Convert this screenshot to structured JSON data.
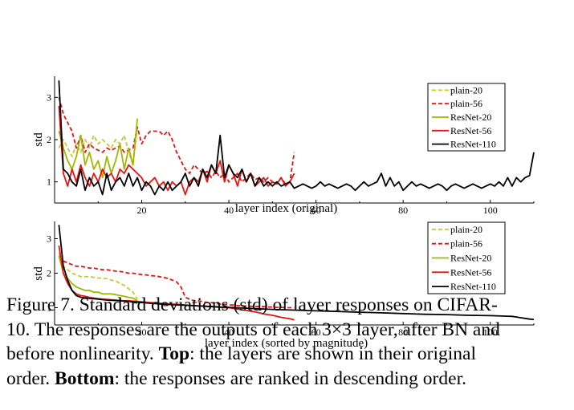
{
  "chart_data": [
    {
      "type": "line",
      "panel": "Top",
      "xlabel": "layer index (original)",
      "ylabel": "std",
      "xlim": [
        0,
        110
      ],
      "ylim": [
        0.5,
        3.5
      ],
      "xticks": [
        20,
        40,
        60,
        80,
        100
      ],
      "yticks": [
        1,
        2,
        3
      ],
      "legend_position": "top-right",
      "series": [
        {
          "name": "plain-20",
          "color": "#c8c832",
          "dash": "dashed",
          "x": [
            1,
            2,
            3,
            4,
            5,
            6,
            7,
            8,
            9,
            10,
            11,
            12,
            13,
            14,
            15,
            16,
            17,
            18,
            19
          ],
          "y": [
            1.8,
            2.0,
            1.8,
            1.6,
            1.9,
            1.7,
            2.0,
            1.8,
            2.1,
            1.9,
            2.0,
            1.9,
            1.8,
            2.0,
            1.9,
            2.1,
            1.7,
            1.4,
            2.3
          ]
        },
        {
          "name": "plain-56",
          "color": "#ee1111",
          "dash": "dashed",
          "x": [
            1,
            2,
            3,
            4,
            5,
            6,
            7,
            8,
            9,
            10,
            11,
            12,
            13,
            14,
            15,
            16,
            17,
            18,
            19,
            20,
            21,
            22,
            23,
            24,
            25,
            26,
            27,
            28,
            29,
            30,
            31,
            32,
            33,
            34,
            35,
            36,
            37,
            38,
            39,
            40,
            41,
            42,
            43,
            44,
            45,
            46,
            47,
            48,
            49,
            50,
            51,
            52,
            53,
            54,
            55
          ],
          "y": [
            3.0,
            2.6,
            2.4,
            2.2,
            1.8,
            2.1,
            1.7,
            1.9,
            1.8,
            1.75,
            1.7,
            1.8,
            1.75,
            1.8,
            1.85,
            1.7,
            1.75,
            1.8,
            2.3,
            1.9,
            2.1,
            2.2,
            2.2,
            2.2,
            2.1,
            2.2,
            2.0,
            1.7,
            1.5,
            1.3,
            1.2,
            1.4,
            1.3,
            1.2,
            1.25,
            1.1,
            1.25,
            1.1,
            1.2,
            1.0,
            1.1,
            1.2,
            1.0,
            1.1,
            1.2,
            1.05,
            1.1,
            1.0,
            1.1,
            1.0,
            0.95,
            1.1,
            0.95,
            1.0,
            1.7
          ]
        },
        {
          "name": "ResNet-20",
          "color": "#9fb800",
          "dash": "solid",
          "x": [
            1,
            2,
            3,
            4,
            5,
            6,
            7,
            8,
            9,
            10,
            11,
            12,
            13,
            14,
            15,
            16,
            17,
            18,
            19
          ],
          "y": [
            2.2,
            1.8,
            1.5,
            1.3,
            1.6,
            2.1,
            1.4,
            1.7,
            1.3,
            1.5,
            1.1,
            1.6,
            1.2,
            1.5,
            1.9,
            1.3,
            1.8,
            1.4,
            2.5
          ]
        },
        {
          "name": "ResNet-56",
          "color": "#ee1111",
          "dash": "solid",
          "x": [
            1,
            2,
            3,
            4,
            5,
            6,
            7,
            8,
            9,
            10,
            11,
            12,
            13,
            14,
            15,
            16,
            17,
            18,
            19,
            20,
            21,
            22,
            23,
            24,
            25,
            26,
            27,
            28,
            29,
            30,
            31,
            32,
            33,
            34,
            35,
            36,
            37,
            38,
            39,
            40,
            41,
            42,
            43,
            44,
            45,
            46,
            47,
            48,
            49,
            50,
            51,
            52,
            53,
            54,
            55
          ],
          "y": [
            2.8,
            1.2,
            0.9,
            1.3,
            1.0,
            1.4,
            1.1,
            0.9,
            1.2,
            1.0,
            1.3,
            1.1,
            1.2,
            1.0,
            1.3,
            1.2,
            1.4,
            1.3,
            1.2,
            1.1,
            0.9,
            1.0,
            1.1,
            0.9,
            1.0,
            0.8,
            1.0,
            0.9,
            1.0,
            0.7,
            1.0,
            1.1,
            1.0,
            1.3,
            1.0,
            1.4,
            1.2,
            1.5,
            1.0,
            1.4,
            1.2,
            0.9,
            1.3,
            1.0,
            1.2,
            0.9,
            1.0,
            1.1,
            0.9,
            1.0,
            0.95,
            1.1,
            0.9,
            1.0,
            1.2
          ]
        },
        {
          "name": "ResNet-110",
          "color": "#000000",
          "dash": "solid",
          "x": [
            1,
            2,
            3,
            4,
            5,
            6,
            7,
            8,
            9,
            10,
            11,
            12,
            13,
            14,
            15,
            16,
            17,
            18,
            19,
            20,
            21,
            22,
            23,
            24,
            25,
            26,
            27,
            28,
            29,
            30,
            31,
            32,
            33,
            34,
            35,
            36,
            37,
            38,
            39,
            40,
            41,
            42,
            43,
            44,
            45,
            46,
            47,
            48,
            49,
            50,
            51,
            52,
            53,
            54,
            55,
            56,
            57,
            58,
            59,
            60,
            61,
            62,
            63,
            64,
            65,
            66,
            67,
            68,
            69,
            70,
            71,
            72,
            73,
            74,
            75,
            76,
            77,
            78,
            79,
            80,
            81,
            82,
            83,
            84,
            85,
            86,
            87,
            88,
            89,
            90,
            91,
            92,
            93,
            94,
            95,
            96,
            97,
            98,
            99,
            100,
            101,
            102,
            103,
            104,
            105,
            106,
            107,
            108,
            109,
            110
          ],
          "y": [
            3.4,
            1.3,
            1.2,
            1.0,
            0.9,
            1.3,
            0.8,
            1.1,
            0.9,
            1.0,
            0.7,
            1.2,
            0.8,
            1.0,
            1.1,
            0.9,
            1.2,
            0.9,
            1.1,
            0.8,
            1.0,
            0.9,
            0.7,
            0.9,
            0.8,
            1.0,
            0.8,
            0.9,
            1.0,
            1.2,
            0.9,
            1.1,
            0.9,
            1.3,
            1.1,
            1.4,
            1.2,
            2.1,
            1.1,
            1.4,
            1.2,
            1.1,
            1.3,
            1.0,
            1.2,
            0.9,
            1.1,
            0.9,
            1.0,
            0.9,
            1.0,
            0.9,
            0.95,
            1.0,
            0.85,
            0.9,
            0.95,
            0.9,
            0.85,
            0.9,
            1.0,
            0.9,
            0.95,
            0.9,
            0.85,
            0.9,
            0.95,
            0.9,
            0.8,
            0.9,
            1.0,
            0.9,
            0.95,
            1.0,
            1.2,
            0.9,
            1.1,
            0.9,
            1.0,
            0.8,
            0.9,
            1.0,
            0.9,
            0.95,
            0.9,
            0.85,
            0.9,
            0.95,
            0.9,
            0.8,
            0.9,
            0.95,
            0.9,
            0.85,
            0.9,
            0.95,
            0.9,
            0.85,
            0.9,
            0.95,
            0.9,
            1.0,
            0.9,
            1.1,
            0.9,
            1.1,
            1.0,
            1.1,
            1.15,
            1.7
          ]
        }
      ]
    },
    {
      "type": "line",
      "panel": "Bottom",
      "xlabel": "layer index (sorted by magnitude)",
      "ylabel": "std",
      "xlim": [
        0,
        110
      ],
      "ylim": [
        0.5,
        3.5
      ],
      "xticks": [
        20,
        40,
        60,
        80,
        100
      ],
      "yticks": [
        1,
        2,
        3
      ],
      "legend_position": "top-right",
      "series": [
        {
          "name": "plain-20",
          "color": "#c8c832",
          "dash": "dashed",
          "x": [
            1,
            2,
            3,
            4,
            5,
            6,
            7,
            8,
            9,
            10,
            11,
            12,
            13,
            14,
            15,
            16,
            17,
            18,
            19
          ],
          "y": [
            2.6,
            2.2,
            2.1,
            2.0,
            1.95,
            1.9,
            1.9,
            1.9,
            1.88,
            1.86,
            1.85,
            1.84,
            1.8,
            1.78,
            1.7,
            1.65,
            1.55,
            1.45,
            1.25
          ]
        },
        {
          "name": "plain-56",
          "color": "#ee1111",
          "dash": "dashed",
          "x": [
            1,
            2,
            3,
            4,
            5,
            6,
            7,
            8,
            9,
            10,
            11,
            12,
            13,
            14,
            15,
            16,
            17,
            18,
            19,
            20,
            21,
            22,
            23,
            24,
            25,
            26,
            27,
            28,
            29,
            30,
            31,
            32,
            33,
            34,
            35,
            36,
            37,
            38,
            39,
            40,
            41,
            42,
            43,
            44,
            45,
            46,
            47,
            48,
            49,
            50,
            51,
            52,
            53,
            54,
            55
          ],
          "y": [
            2.5,
            2.35,
            2.3,
            2.25,
            2.2,
            2.2,
            2.18,
            2.15,
            2.15,
            2.12,
            2.1,
            2.1,
            2.08,
            2.06,
            2.05,
            2.03,
            2.0,
            2.0,
            1.98,
            1.96,
            1.95,
            1.93,
            1.92,
            1.9,
            1.88,
            1.85,
            1.8,
            1.75,
            1.6,
            1.3,
            1.25,
            1.2,
            1.2,
            1.18,
            1.15,
            1.15,
            1.12,
            1.1,
            1.1,
            1.08,
            1.08,
            1.06,
            1.05,
            1.05,
            1.04,
            1.04,
            1.03,
            1.03,
            1.02,
            1.02,
            1.01,
            1.01,
            1.0,
            1.0,
            1.0
          ]
        },
        {
          "name": "ResNet-20",
          "color": "#9fb800",
          "dash": "solid",
          "x": [
            1,
            2,
            3,
            4,
            5,
            6,
            7,
            8,
            9,
            10,
            11,
            12,
            13,
            14,
            15,
            16,
            17,
            18,
            19
          ],
          "y": [
            2.5,
            2.0,
            1.85,
            1.7,
            1.6,
            1.55,
            1.5,
            1.5,
            1.45,
            1.45,
            1.4,
            1.4,
            1.4,
            1.38,
            1.35,
            1.33,
            1.3,
            1.28,
            1.2
          ]
        },
        {
          "name": "ResNet-56",
          "color": "#ee1111",
          "dash": "solid",
          "x": [
            1,
            2,
            3,
            4,
            5,
            6,
            7,
            8,
            9,
            10,
            11,
            12,
            13,
            14,
            15,
            16,
            17,
            18,
            19,
            20,
            21,
            22,
            23,
            24,
            25,
            26,
            27,
            28,
            29,
            30,
            31,
            32,
            33,
            34,
            35,
            36,
            37,
            38,
            39,
            40,
            41,
            42,
            43,
            44,
            45,
            46,
            47,
            48,
            49,
            50,
            51,
            52,
            53,
            54,
            55
          ],
          "y": [
            2.8,
            2.0,
            1.7,
            1.5,
            1.4,
            1.35,
            1.33,
            1.3,
            1.28,
            1.26,
            1.25,
            1.24,
            1.23,
            1.22,
            1.21,
            1.2,
            1.2,
            1.19,
            1.18,
            1.17,
            1.16,
            1.15,
            1.14,
            1.13,
            1.12,
            1.11,
            1.1,
            1.1,
            1.09,
            1.08,
            1.07,
            1.06,
            1.05,
            1.05,
            1.04,
            1.03,
            1.02,
            1.01,
            1.0,
            1.0,
            0.98,
            0.96,
            0.94,
            0.92,
            0.9,
            0.88,
            0.85,
            0.82,
            0.8,
            0.78,
            0.75,
            0.72,
            0.7,
            0.68,
            0.65
          ]
        },
        {
          "name": "ResNet-110",
          "color": "#000000",
          "dash": "solid",
          "x": [
            1,
            2,
            3,
            4,
            5,
            6,
            8,
            10,
            12,
            15,
            20,
            25,
            30,
            35,
            40,
            45,
            50,
            55,
            60,
            65,
            70,
            75,
            80,
            85,
            90,
            95,
            100,
            105,
            106,
            107,
            108,
            109,
            110
          ],
          "y": [
            3.4,
            2.2,
            1.8,
            1.5,
            1.35,
            1.3,
            1.27,
            1.25,
            1.22,
            1.2,
            1.15,
            1.1,
            1.07,
            1.04,
            1.01,
            0.98,
            0.95,
            0.93,
            0.91,
            0.89,
            0.87,
            0.85,
            0.83,
            0.81,
            0.8,
            0.78,
            0.77,
            0.75,
            0.73,
            0.71,
            0.69,
            0.67,
            0.66
          ]
        }
      ]
    }
  ],
  "caption": {
    "lines": [
      [
        "Figure 7. Standard deviations (std) of layer responses on CIFAR-"
      ],
      [
        "10. The responses are the outputs of each 3",
        "×",
        "3 layer, after BN and"
      ],
      [
        "before nonlinearity. ",
        "Top",
        ": the layers are shown in their original"
      ],
      [
        "order. ",
        "Bottom",
        ": the responses are ranked in descending order."
      ]
    ]
  }
}
